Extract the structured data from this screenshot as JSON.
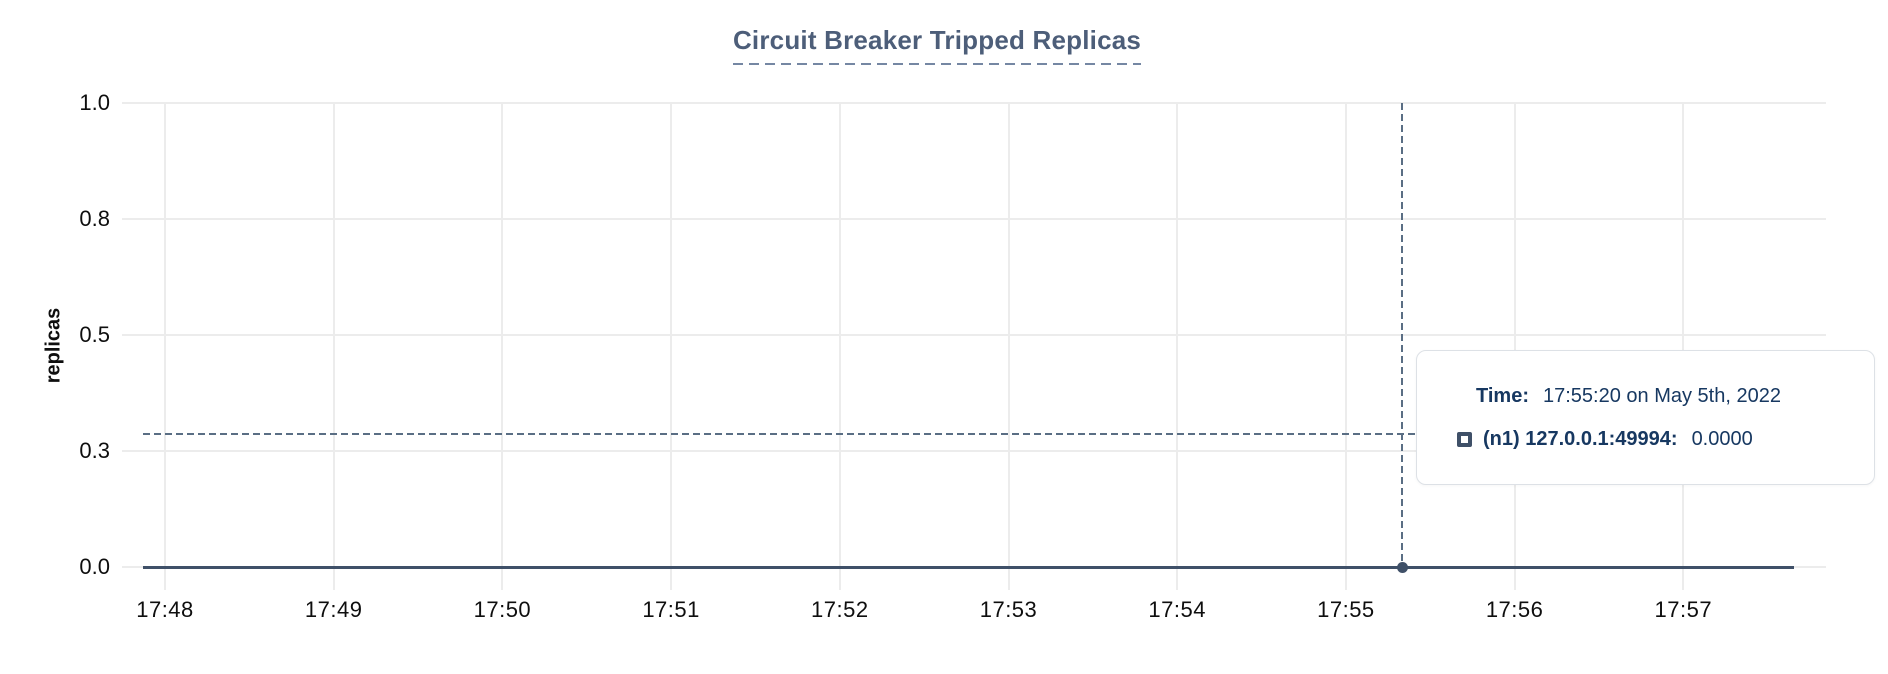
{
  "title": "Circuit Breaker Tripped Replicas",
  "chart_data": {
    "type": "line",
    "title": "Circuit Breaker Tripped Replicas",
    "xlabel": "",
    "ylabel": "replicas",
    "ylim": [
      0,
      1
    ],
    "grid": true,
    "legend_position": "tooltip-overlay",
    "x_ticks": [
      {
        "label": "17:48",
        "t": 0
      },
      {
        "label": "17:49",
        "t": 1
      },
      {
        "label": "17:50",
        "t": 2
      },
      {
        "label": "17:51",
        "t": 3
      },
      {
        "label": "17:52",
        "t": 4
      },
      {
        "label": "17:53",
        "t": 5
      },
      {
        "label": "17:54",
        "t": 6
      },
      {
        "label": "17:55",
        "t": 7
      },
      {
        "label": "17:56",
        "t": 8
      },
      {
        "label": "17:57",
        "t": 9
      }
    ],
    "y_ticks": [
      {
        "label": "0.0",
        "value": 0
      },
      {
        "label": "0.3",
        "value": 0.25
      },
      {
        "label": "0.5",
        "value": 0.5
      },
      {
        "label": "0.8",
        "value": 0.75
      },
      {
        "label": "1.0",
        "value": 1
      }
    ],
    "series": [
      {
        "name": "(n1) 127.0.0.1:49994",
        "x": [
          "17:48",
          "17:49",
          "17:50",
          "17:51",
          "17:52",
          "17:53",
          "17:54",
          "17:55",
          "17:56",
          "17:57"
        ],
        "values": [
          0,
          0,
          0,
          0,
          0,
          0,
          0,
          0,
          0,
          0
        ]
      }
    ],
    "cursor": {
      "time": "17:55:20",
      "date": "May 5th, 2022",
      "t": 7.333,
      "y_fraction": 0.287,
      "value": 0.0
    }
  },
  "tooltip": {
    "time_label": "Time:",
    "time_value": "17:55:20 on May 5th, 2022",
    "series_label": "(n1) 127.0.0.1:49994:",
    "series_value": "0.0000"
  },
  "colors": {
    "accent_line": "#3F5068",
    "crosshair": "#5A6E84",
    "grid": "#ECECEC",
    "title": "#4D5E79",
    "underline": "#7587A3",
    "axis_text": "#0E0E0E",
    "tooltip_text": "#173861",
    "tooltip_border": "#DDE1E6",
    "legend_square_border": "#3F5068",
    "background": "#FFFFFF"
  }
}
